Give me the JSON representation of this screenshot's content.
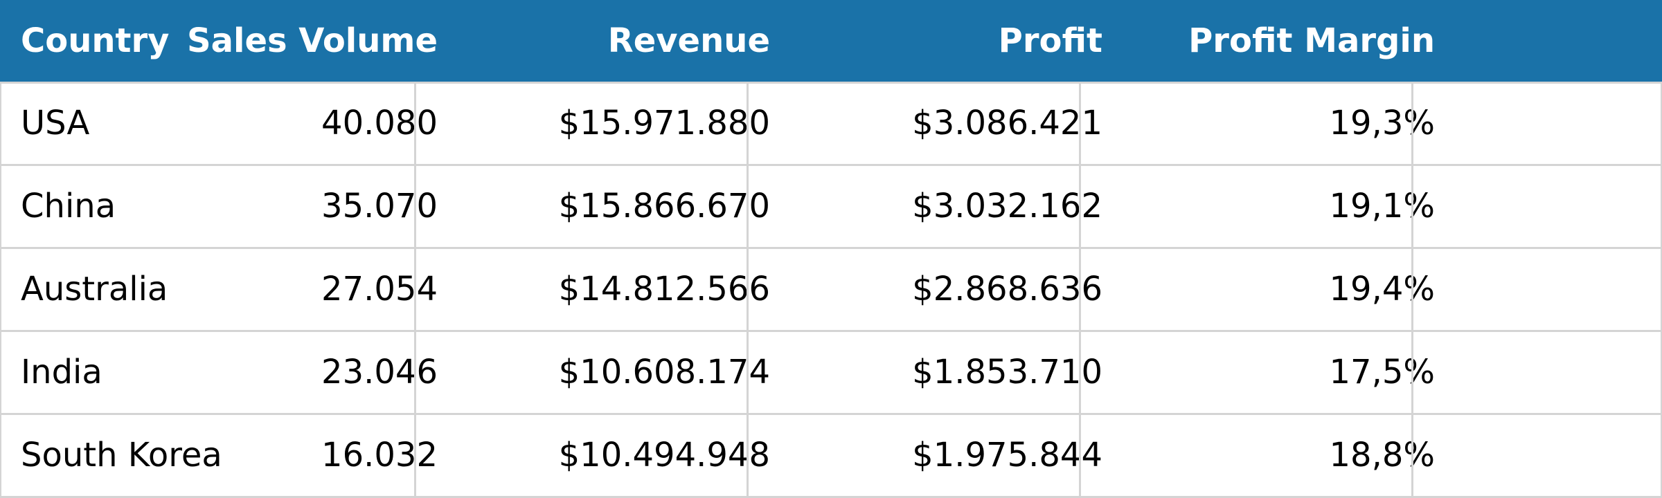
{
  "chart_data": {
    "type": "table",
    "columns": [
      "Country",
      "Sales Volume",
      "Revenue",
      "Profit",
      "Profit Margin"
    ],
    "rows": [
      [
        "USA",
        "40.080",
        "$15.971.880",
        "$3.086.421",
        "19,3%"
      ],
      [
        "China",
        "35.070",
        "$15.866.670",
        "$3.032.162",
        "19,1%"
      ],
      [
        "Australia",
        "27.054",
        "$14.812.566",
        "$2.868.636",
        "19,4%"
      ],
      [
        "India",
        "23.046",
        "$10.608.174",
        "$1.853.710",
        "17,5%"
      ],
      [
        "South Korea",
        "16.032",
        "$10.494.948",
        "$1.975.844",
        "18,8%"
      ]
    ],
    "header_color": "#1a72a8",
    "header_text_color": "#ffffff",
    "grid_color": "#d4d4d4"
  }
}
